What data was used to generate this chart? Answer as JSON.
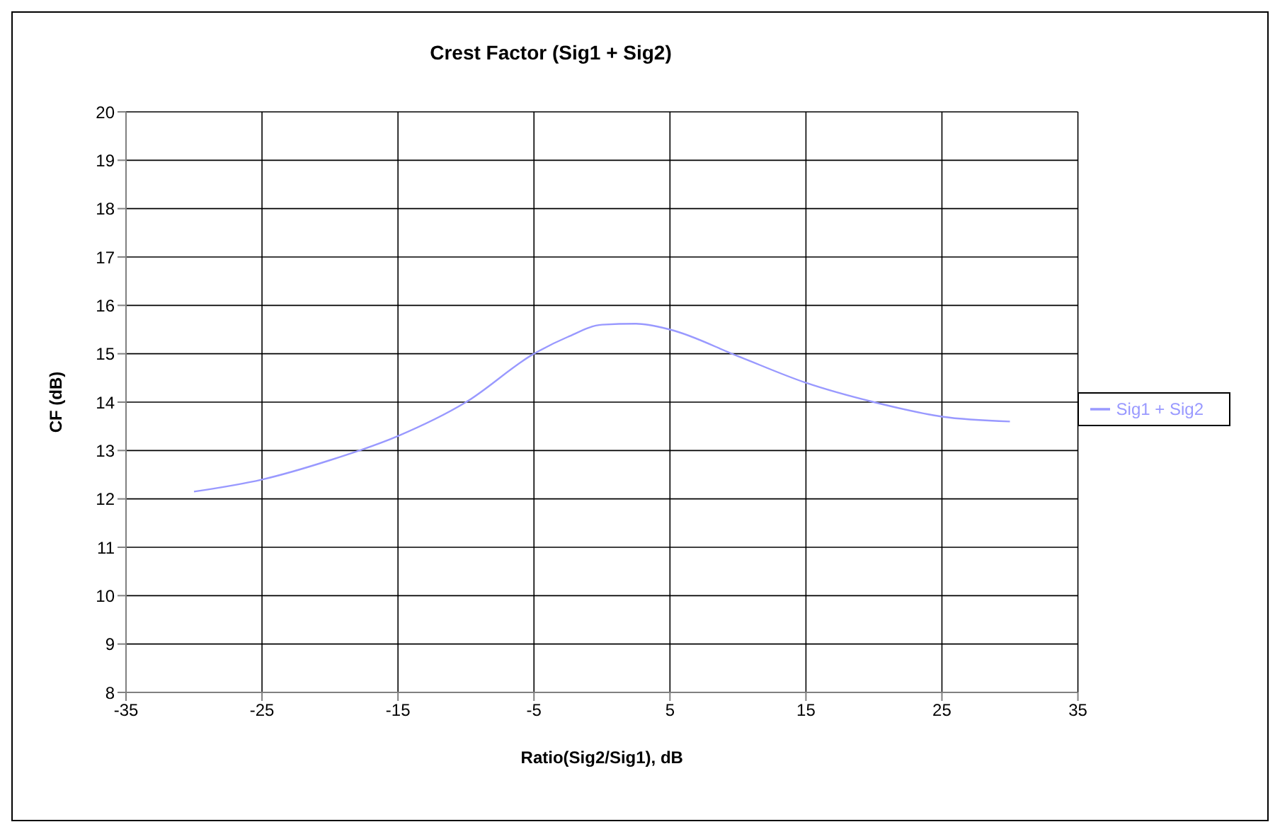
{
  "chart_data": {
    "type": "line",
    "title": "Crest Factor (Sig1 + Sig2)",
    "xlabel": "Ratio(Sig2/Sig1), dB",
    "ylabel": "CF (dB)",
    "x": [
      -30,
      -25,
      -20,
      -15,
      -10,
      -5,
      -2.5,
      0,
      2.5,
      5,
      10,
      15,
      20,
      25,
      30
    ],
    "series": [
      {
        "name": "Sig1 + Sig2",
        "color": "#9999ff",
        "values": [
          12.15,
          12.4,
          12.8,
          13.3,
          14.0,
          15.0,
          15.35,
          15.6,
          15.62,
          15.5,
          14.95,
          14.4,
          14.0,
          13.7,
          13.6
        ]
      }
    ],
    "xlim": [
      -35,
      35
    ],
    "xticks": [
      -35,
      -25,
      -15,
      -5,
      5,
      15,
      25,
      35
    ],
    "ylim": [
      8,
      20
    ],
    "yticks": [
      8,
      9,
      10,
      11,
      12,
      13,
      14,
      15,
      16,
      17,
      18,
      19,
      20
    ],
    "grid": true,
    "legend": "right",
    "marker": "none",
    "line_style": "solid"
  }
}
